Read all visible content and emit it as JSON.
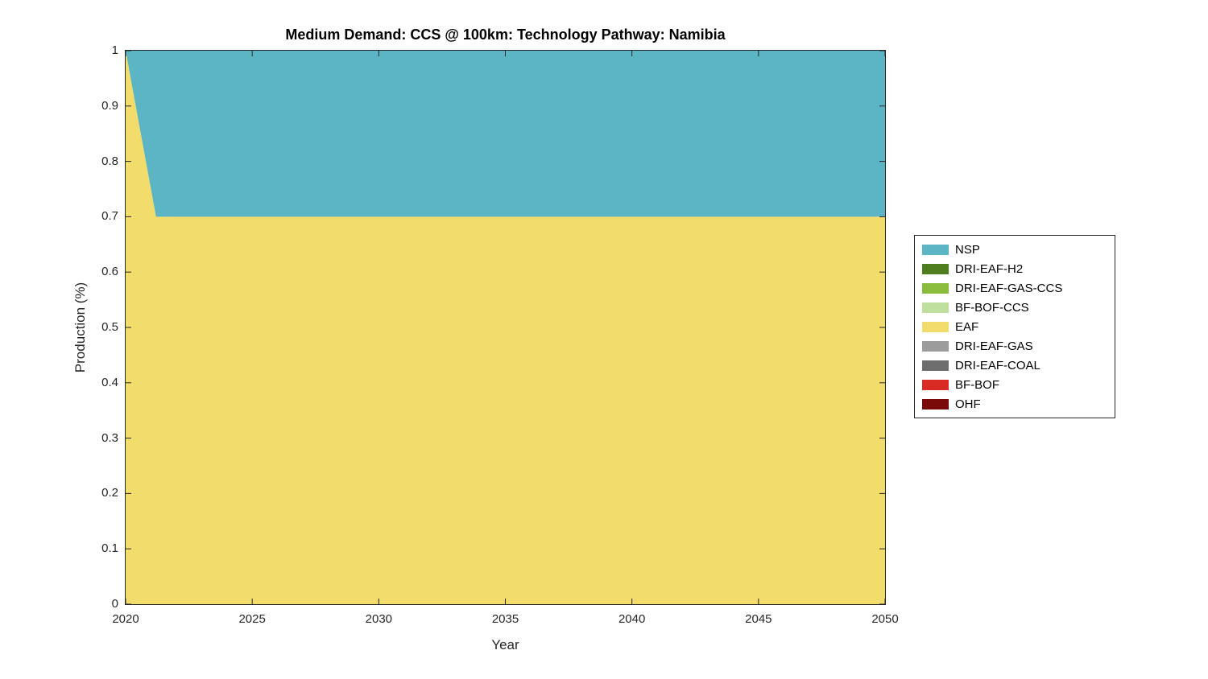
{
  "chart_data": {
    "type": "area",
    "title": "Medium Demand: CCS @ 100km: Technology Pathway: Namibia",
    "xlabel": "Year",
    "ylabel": "Production (%)",
    "xlim": [
      2020,
      2050
    ],
    "ylim": [
      0,
      1
    ],
    "grid": false,
    "legend_position": "outside-right",
    "x": [
      2020,
      2021.2,
      2050
    ],
    "series": [
      {
        "name": "NSP",
        "color": "#5BB5C5",
        "values": [
          0.0,
          0.3,
          0.3
        ]
      },
      {
        "name": "DRI-EAF-H2",
        "color": "#4E7E20",
        "values": [
          0.0,
          0.0,
          0.0
        ]
      },
      {
        "name": "DRI-EAF-GAS-CCS",
        "color": "#8ABD3D",
        "values": [
          0.0,
          0.0,
          0.0
        ]
      },
      {
        "name": "BF-BOF-CCS",
        "color": "#BFDF9E",
        "values": [
          0.0,
          0.0,
          0.0
        ]
      },
      {
        "name": "EAF",
        "color": "#F2DD6C",
        "values": [
          1.0,
          0.7,
          0.7
        ]
      },
      {
        "name": "DRI-EAF-GAS",
        "color": "#9C9C9C",
        "values": [
          0.0,
          0.0,
          0.0
        ]
      },
      {
        "name": "DRI-EAF-COAL",
        "color": "#6E6E6E",
        "values": [
          0.0,
          0.0,
          0.0
        ]
      },
      {
        "name": "BF-BOF",
        "color": "#D92B23",
        "values": [
          0.0,
          0.0,
          0.0
        ]
      },
      {
        "name": "OHF",
        "color": "#7A0A0A",
        "values": [
          0.0,
          0.0,
          0.0
        ]
      }
    ],
    "stack_note": "series listed top-to-bottom (legend order); areas stacked bottom-to-top in reverse of this list",
    "x_tick_values": [
      2020,
      2025,
      2030,
      2035,
      2040,
      2045,
      2050
    ],
    "x_tick_labels": [
      "2020",
      "2025",
      "2030",
      "2035",
      "2040",
      "2045",
      "2050"
    ],
    "y_tick_values": [
      0,
      0.1,
      0.2,
      0.3,
      0.4,
      0.5,
      0.6,
      0.7,
      0.8,
      0.9,
      1
    ],
    "y_tick_labels": [
      "0",
      "0.1",
      "0.2",
      "0.3",
      "0.4",
      "0.5",
      "0.6",
      "0.7",
      "0.8",
      "0.9",
      "1"
    ],
    "axis_color": "#262626"
  }
}
